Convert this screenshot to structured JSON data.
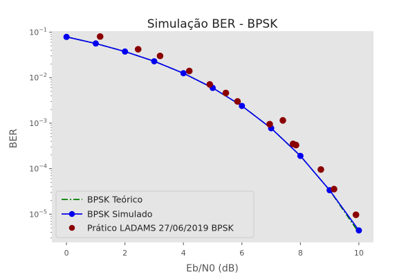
{
  "chart_data": {
    "type": "scatter",
    "title": "Simulação BER - BPSK",
    "xlabel": "Eb/N0 (dB)",
    "ylabel": "BER",
    "xlim": [
      -0.5,
      10.5
    ],
    "ylim": [
      2.4e-06,
      0.105
    ],
    "yscale": "log",
    "grid": false,
    "background": "#e5e5e5",
    "legend_position": "lower-left",
    "xticks": [
      0,
      2,
      4,
      6,
      8,
      10
    ],
    "xtick_labels": [
      "0",
      "2",
      "4",
      "6",
      "8",
      "10"
    ],
    "yticks": [
      1e-05,
      0.0001,
      0.001,
      0.01,
      0.1
    ],
    "ytick_labels": [
      {
        "base": "10",
        "exp": "−5"
      },
      {
        "base": "10",
        "exp": "−4"
      },
      {
        "base": "10",
        "exp": "−3"
      },
      {
        "base": "10",
        "exp": "−2"
      },
      {
        "base": "10",
        "exp": "−1"
      }
    ],
    "series": [
      {
        "name": "BPSK Teórico",
        "kind": "line",
        "style": "dashdot",
        "color": "#008000",
        "x": [
          0,
          1,
          2,
          3,
          4,
          5,
          6,
          7,
          8,
          9,
          10
        ],
        "y": [
          0.0786,
          0.0563,
          0.0375,
          0.0229,
          0.0125,
          0.00595,
          0.00239,
          0.000773,
          0.000191,
          3.36e-05,
          3.9e-06
        ]
      },
      {
        "name": "BPSK Simulado",
        "kind": "line-marker",
        "color": "#0000ee",
        "x": [
          0,
          1,
          2,
          3,
          4,
          5,
          6,
          7,
          8,
          9,
          10
        ],
        "y": [
          0.0786,
          0.0563,
          0.0375,
          0.0229,
          0.0125,
          0.00595,
          0.00239,
          0.000773,
          0.000191,
          3.36e-05,
          4.4e-06
        ]
      },
      {
        "name": "Prático LADAMS 27/06/2019 BPSK",
        "kind": "scatter",
        "color": "#8b0000",
        "x": [
          1.15,
          2.45,
          3.2,
          4.2,
          4.9,
          5.45,
          5.85,
          6.95,
          7.4,
          7.75,
          7.85,
          8.7,
          9.15,
          9.9
        ],
        "y": [
          0.08,
          0.042,
          0.03,
          0.014,
          0.0071,
          0.0046,
          0.003,
          0.00095,
          0.00115,
          0.00035,
          0.00033,
          9.58e-05,
          3.55e-05,
          9.7e-06
        ]
      }
    ]
  }
}
